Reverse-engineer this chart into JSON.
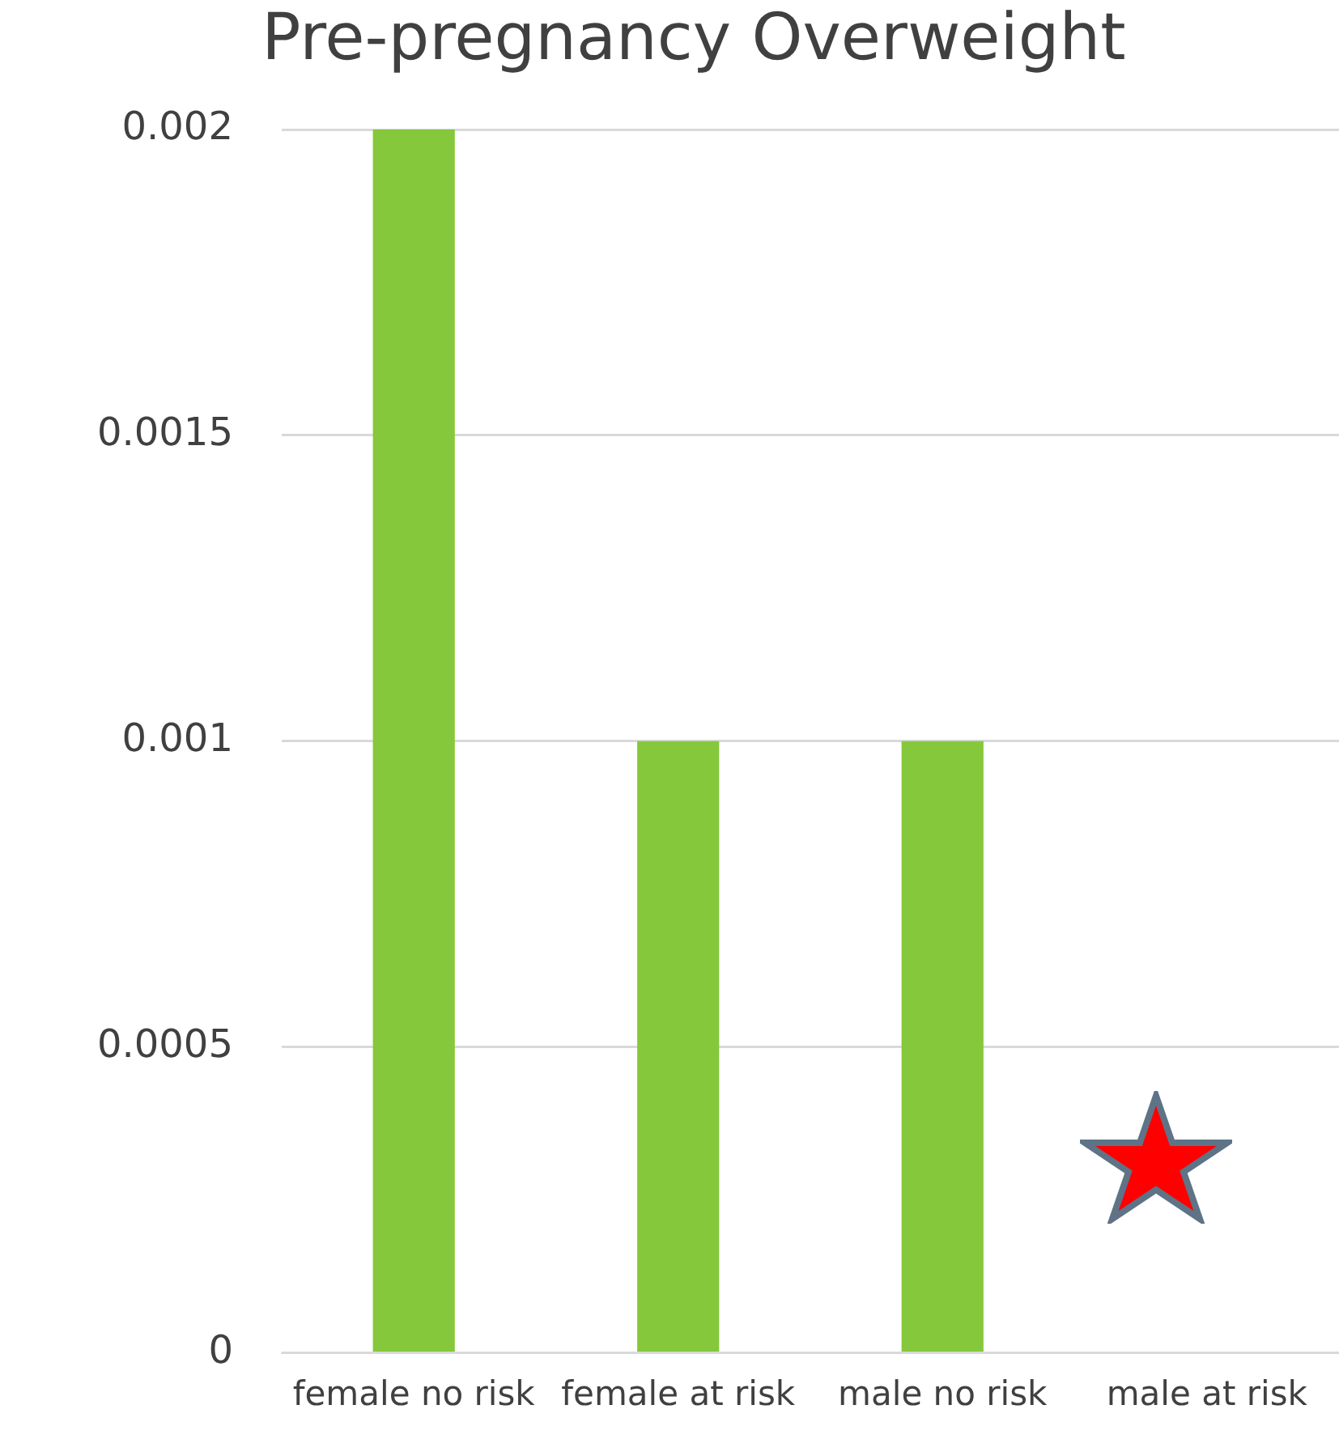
{
  "chart_data": {
    "type": "bar",
    "title": "Pre-pregnancy Overweight",
    "categories": [
      "female no risk",
      "female at risk",
      "male no risk",
      "male at risk"
    ],
    "values": [
      0.002,
      0.001,
      0.001,
      0
    ],
    "color": "#85c83b",
    "ylim": [
      0,
      0.002
    ],
    "yticks": [
      0,
      0.0005,
      0.001,
      0.0015,
      0.002
    ],
    "grid": "y",
    "legend": false
  }
}
